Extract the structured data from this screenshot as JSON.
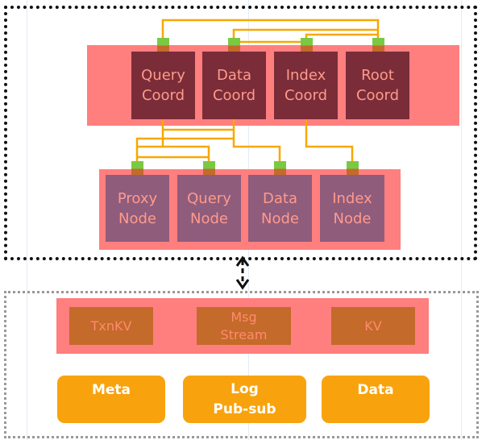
{
  "colors": {
    "band": "#ff7f7f",
    "coord": "#7a2c38",
    "node": "#8f5c7c",
    "storage": "#c46a2a",
    "pool": "#f8a30e",
    "connector": "#f7a800",
    "port": "#7ac943"
  },
  "coordinators": [
    {
      "line1": "Query",
      "line2": "Coord"
    },
    {
      "line1": "Data",
      "line2": "Coord"
    },
    {
      "line1": "Index",
      "line2": "Coord"
    },
    {
      "line1": "Root",
      "line2": "Coord"
    }
  ],
  "nodes": [
    {
      "line1": "Proxy",
      "line2": "Node"
    },
    {
      "line1": "Query",
      "line2": "Node"
    },
    {
      "line1": "Data",
      "line2": "Node"
    },
    {
      "line1": "Index",
      "line2": "Node"
    }
  ],
  "storage": [
    {
      "line1": "TxnKV",
      "line2": ""
    },
    {
      "line1": "Msg",
      "line2": "Stream"
    },
    {
      "line1": "KV",
      "line2": ""
    }
  ],
  "pools": [
    {
      "line1": "Meta",
      "line2": ""
    },
    {
      "line1": "Log",
      "line2": "Pub-sub"
    },
    {
      "line1": "Data",
      "line2": ""
    }
  ]
}
